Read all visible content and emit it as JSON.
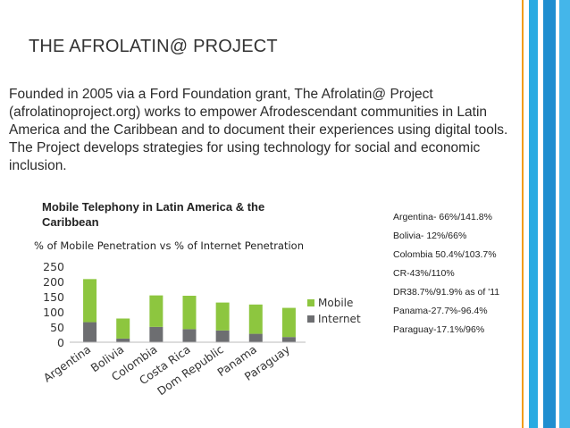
{
  "slide": {
    "title": "THE AFROLATIN@ PROJECT",
    "paragraph": "Founded in 2005 via a  Ford Foundation grant, The Afrolatin@ Project (afrolatinoproject.org) works to empower Afrodescendant communities in Latin America and the Caribbean and to document their experiences using digital tools. The Project  develops strategies for using technology for social and economic inclusion.",
    "chart_heading_line1": "Mobile Telephony in Latin America & the",
    "chart_heading_line2": "Caribbean",
    "stats": [
      "Argentina- 66%/141.8%",
      "Bolivia- 12%/66%",
      "Colombia 50.4%/103.7%",
      "CR-43%/110%",
      "DR38.7%/91.9% as of '11",
      "Panama-27.7%-96.4%",
      "Paraguay-17.1%/96%"
    ],
    "colors": {
      "mobile": "#8dc63f",
      "internet": "#6d6e71",
      "stripe_orange": "#f39c12",
      "stripe_blue": "#29abe2"
    }
  },
  "chart_data": {
    "type": "bar",
    "stacked": true,
    "title": "% of Mobile Penetration vs % of Internet Penetration",
    "categories": [
      "Argentina",
      "Bolivia",
      "Colombia",
      "Costa Rica",
      "Dom Republic",
      "Panama",
      "Paraguay"
    ],
    "series": [
      {
        "name": "Internet",
        "values": [
          66,
          12,
          50.4,
          43,
          38.7,
          27.7,
          17.1
        ],
        "color": "#6d6e71"
      },
      {
        "name": "Mobile",
        "values": [
          141.8,
          66,
          103.7,
          110,
          91.9,
          96.4,
          96
        ],
        "color": "#8dc63f"
      }
    ],
    "legend_order": [
      "Mobile",
      "Internet"
    ],
    "legend_position": "right",
    "ylim": [
      0,
      250
    ],
    "yticks": [
      0,
      50,
      100,
      150,
      200,
      250
    ],
    "grid": false,
    "xlabel": "",
    "ylabel": ""
  }
}
